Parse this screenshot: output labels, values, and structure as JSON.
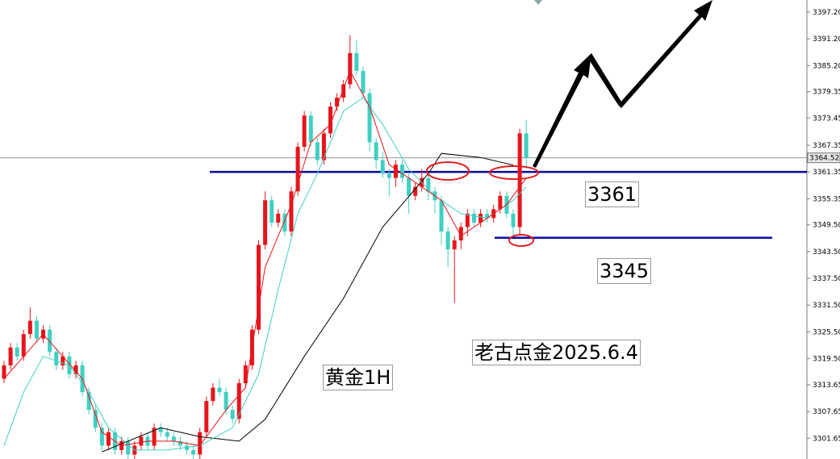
{
  "chart_data": {
    "type": "candlestick",
    "ylim": [
      3297.0,
      3399.9
    ],
    "yticks": [
      {
        "value": 3397.2,
        "label": "3397.20"
      },
      {
        "value": 3391.2,
        "label": "3391.20"
      },
      {
        "value": 3385.2,
        "label": "3385.20"
      },
      {
        "value": 3379.35,
        "label": "3379.35"
      },
      {
        "value": 3373.45,
        "label": "3373.45"
      },
      {
        "value": 3367.35,
        "label": "3367.35"
      },
      {
        "value": 3361.35,
        "label": "3361.35"
      },
      {
        "value": 3355.35,
        "label": "3355.35"
      },
      {
        "value": 3349.5,
        "label": "3349.50"
      },
      {
        "value": 3343.5,
        "label": "3343.50"
      },
      {
        "value": 3337.5,
        "label": "3337.50"
      },
      {
        "value": 3331.5,
        "label": "3331.50"
      },
      {
        "value": 3325.5,
        "label": "3325.50"
      },
      {
        "value": 3319.5,
        "label": "3319.50"
      },
      {
        "value": 3313.65,
        "label": "3313.65"
      },
      {
        "value": 3307.65,
        "label": "3307.65"
      },
      {
        "value": 3301.65,
        "label": "3301.65"
      }
    ],
    "up_color": "#e8141b",
    "down_color": "#3fd0c2",
    "ohlc": [
      [
        3315,
        3319,
        3314,
        3318
      ],
      [
        3318,
        3323,
        3317,
        3322
      ],
      [
        3322,
        3323,
        3319,
        3320
      ],
      [
        3320,
        3326,
        3319,
        3325
      ],
      [
        3325,
        3331,
        3324,
        3328
      ],
      [
        3328,
        3329,
        3323,
        3324
      ],
      [
        3324,
        3327,
        3323,
        3326
      ],
      [
        3326,
        3327,
        3320,
        3321
      ],
      [
        3321,
        3322,
        3317,
        3318
      ],
      [
        3318,
        3321,
        3317,
        3320
      ],
      [
        3320,
        3321,
        3315,
        3316
      ],
      [
        3316,
        3319,
        3315,
        3318
      ],
      [
        3318,
        3319,
        3311,
        3312
      ],
      [
        3312,
        3313,
        3307,
        3308
      ],
      [
        3308,
        3309,
        3303,
        3304
      ],
      [
        3304,
        3305,
        3299,
        3300
      ],
      [
        3300,
        3304,
        3299,
        3303
      ],
      [
        3303,
        3304,
        3298,
        3299
      ],
      [
        3299,
        3302,
        3298,
        3301
      ],
      [
        3301,
        3302,
        3297,
        3298
      ],
      [
        3298,
        3301,
        3297,
        3300
      ],
      [
        3300,
        3303,
        3299,
        3302
      ],
      [
        3302,
        3303,
        3299,
        3300
      ],
      [
        3300,
        3305,
        3299,
        3304
      ],
      [
        3304,
        3305,
        3302,
        3303
      ],
      [
        3303,
        3304,
        3301,
        3302
      ],
      [
        3302,
        3303,
        3300,
        3301
      ],
      [
        3301,
        3302,
        3299,
        3300
      ],
      [
        3300,
        3301,
        3298,
        3299
      ],
      [
        3299,
        3300,
        3297,
        3298
      ],
      [
        3298,
        3304,
        3297,
        3303
      ],
      [
        3303,
        3311,
        3302,
        3310
      ],
      [
        3310,
        3314,
        3309,
        3313
      ],
      [
        3313,
        3315,
        3311,
        3312
      ],
      [
        3312,
        3313,
        3307,
        3308
      ],
      [
        3308,
        3309,
        3305,
        3306
      ],
      [
        3306,
        3315,
        3305,
        3314
      ],
      [
        3314,
        3319,
        3313,
        3318
      ],
      [
        3318,
        3327,
        3317,
        3326
      ],
      [
        3326,
        3346,
        3325,
        3345
      ],
      [
        3345,
        3357,
        3344,
        3355
      ],
      [
        3355,
        3356,
        3349,
        3350
      ],
      [
        3350,
        3353,
        3349,
        3352
      ],
      [
        3352,
        3353,
        3347,
        3348
      ],
      [
        3348,
        3358,
        3347,
        3357
      ],
      [
        3357,
        3368,
        3356,
        3367
      ],
      [
        3367,
        3375,
        3366,
        3374
      ],
      [
        3374,
        3375,
        3367,
        3368
      ],
      [
        3368,
        3369,
        3363,
        3364
      ],
      [
        3364,
        3371,
        3363,
        3370
      ],
      [
        3370,
        3377,
        3369,
        3376
      ],
      [
        3376,
        3379,
        3375,
        3378
      ],
      [
        3378,
        3382,
        3377,
        3381
      ],
      [
        3381,
        3392,
        3380,
        3388
      ],
      [
        3388,
        3391,
        3383,
        3384
      ],
      [
        3384,
        3385,
        3378,
        3379
      ],
      [
        3379,
        3380,
        3366,
        3368
      ],
      [
        3368,
        3369,
        3362,
        3364
      ],
      [
        3364,
        3366,
        3360,
        3361
      ],
      [
        3361,
        3362,
        3356,
        3360
      ],
      [
        3360,
        3364,
        3358,
        3363
      ],
      [
        3363,
        3364,
        3359,
        3360
      ],
      [
        3360,
        3361,
        3352,
        3356
      ],
      [
        3356,
        3359,
        3355,
        3358
      ],
      [
        3358,
        3362,
        3357,
        3360
      ],
      [
        3360,
        3361,
        3355,
        3357
      ],
      [
        3357,
        3358,
        3352,
        3355
      ],
      [
        3355,
        3356,
        3345,
        3348
      ],
      [
        3348,
        3349,
        3340,
        3344
      ],
      [
        3344,
        3347,
        3332,
        3346
      ],
      [
        3346,
        3350,
        3344,
        3349
      ],
      [
        3349,
        3353,
        3347,
        3352
      ],
      [
        3352,
        3353,
        3349,
        3350
      ],
      [
        3350,
        3353,
        3349,
        3352
      ],
      [
        3352,
        3353,
        3350,
        3351
      ],
      [
        3351,
        3354,
        3350,
        3353
      ],
      [
        3353,
        3357,
        3352,
        3356
      ],
      [
        3356,
        3357,
        3351,
        3352
      ],
      [
        3352,
        3353,
        3347,
        3349
      ],
      [
        3349,
        3371,
        3347,
        3370
      ],
      [
        3370,
        3373,
        3362,
        3364.52
      ]
    ],
    "series": [
      {
        "color": "#000000",
        "x": [
          15,
          24,
          30,
          36,
          40,
          46,
          52,
          58,
          65,
          67,
          73,
          78
        ],
        "values": [
          3298.6,
          3304,
          3302,
          3301,
          3305.9,
          3320,
          3333,
          3349,
          3361,
          3365.5,
          3364.6,
          3362.9
        ]
      },
      {
        "color": "#3fd0c2",
        "x": [
          0,
          3,
          6,
          10,
          13,
          16,
          20,
          25,
          30,
          35,
          39,
          42,
          45,
          48,
          52,
          55,
          58,
          62,
          66,
          70,
          74,
          78,
          80
        ],
        "values": [
          3300,
          3312,
          3320,
          3318,
          3312,
          3304,
          3299,
          3299,
          3300,
          3304,
          3316,
          3335,
          3352,
          3361,
          3375,
          3378,
          3372,
          3362,
          3356,
          3352,
          3351,
          3355,
          3358
        ]
      },
      {
        "color": "#e8141b",
        "x": [
          0,
          3,
          6,
          9,
          12,
          15,
          18,
          22,
          26,
          30,
          34,
          37,
          40,
          44,
          47,
          50,
          53,
          56,
          59,
          63,
          67,
          70,
          74,
          77,
          80
        ],
        "values": [
          3315,
          3320,
          3325,
          3320,
          3315,
          3303,
          3300,
          3301,
          3301,
          3300,
          3308,
          3313,
          3340,
          3354,
          3368,
          3372,
          3384,
          3376,
          3363,
          3359,
          3355,
          3347,
          3351,
          3354,
          3360
        ]
      }
    ],
    "current_price": 3364.52,
    "levels": [
      3361.35,
      3346.6
    ],
    "annotations": [
      "3361",
      "3345",
      "老古点金2025.6.4",
      "黄金1H"
    ]
  }
}
